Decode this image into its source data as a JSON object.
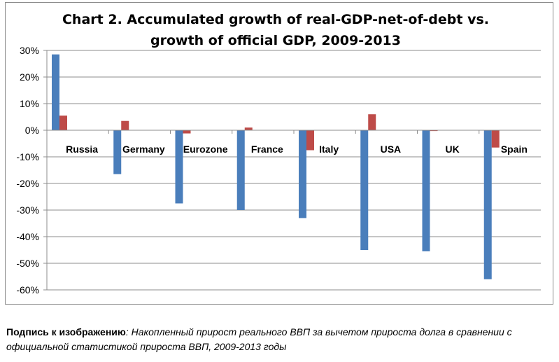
{
  "chart_data": {
    "type": "bar",
    "title": [
      "Chart 2. Accumulated growth of real-GDP-net-of-debt vs.",
      "growth of official GDP, 2009-2013"
    ],
    "categories": [
      "Russia",
      "Germany",
      "Eurozone",
      "France",
      "Italy",
      "USA",
      "UK",
      "Spain"
    ],
    "series": [
      {
        "color": "#4a7ebb",
        "values": [
          28.5,
          -16.5,
          -27.5,
          -30,
          -33,
          -45,
          -45.5,
          -56
        ]
      },
      {
        "color": "#be4b48",
        "values": [
          5.5,
          3.5,
          -1.2,
          1.0,
          -7.5,
          6.0,
          -0.3,
          -6.5
        ]
      }
    ],
    "ylim": [
      -60,
      30
    ],
    "yticks": [
      30,
      20,
      10,
      0,
      -10,
      -20,
      -30,
      -40,
      -50,
      -60
    ],
    "ytick_labels": [
      "30%",
      "20%",
      "10%",
      "0%",
      "-10%",
      "-20%",
      "-30%",
      "-40%",
      "-50%",
      "-60%"
    ],
    "grid": true,
    "legend": "none"
  },
  "caption": {
    "label": "Подпись к изображению",
    "text": ": Накопленный прирост реального ВВП за вычетом прироста долга в сравнении с официальной статистикой прироста ВВП, 2009-2013 годы"
  }
}
